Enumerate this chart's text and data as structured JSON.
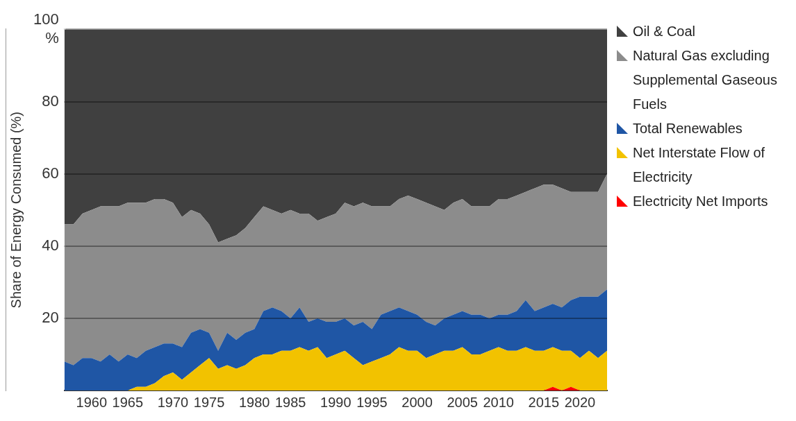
{
  "chart_data": {
    "type": "area",
    "stacked": true,
    "ylabel": "Share of Energy Consumed (%)",
    "categories": [
      null,
      null,
      null,
      "1960",
      null,
      null,
      null,
      "1965",
      null,
      null,
      null,
      null,
      "1970",
      null,
      null,
      null,
      "1975",
      null,
      null,
      null,
      null,
      "1980",
      null,
      null,
      null,
      "1985",
      null,
      null,
      null,
      null,
      "1990",
      null,
      null,
      null,
      "1995",
      null,
      null,
      null,
      null,
      "2000",
      null,
      null,
      null,
      null,
      "2005",
      null,
      null,
      null,
      "2010",
      null,
      null,
      null,
      null,
      "2015",
      null,
      null,
      null,
      "2020",
      null,
      null,
      null
    ],
    "series": [
      {
        "name": "Electricity Net Imports",
        "color": "#ff0000",
        "values": [
          0,
          0,
          0,
          0,
          0,
          0,
          0,
          0,
          0,
          0,
          0,
          0,
          0,
          0,
          0,
          0,
          0,
          0,
          0,
          0,
          0,
          0,
          0,
          0,
          0,
          0,
          0,
          0,
          0,
          0,
          0,
          0,
          0,
          0,
          0,
          0,
          0,
          0,
          0,
          0,
          0,
          0,
          0,
          0,
          0,
          0,
          0,
          0,
          0,
          0,
          0,
          0,
          0,
          0,
          1,
          0,
          1,
          0,
          0,
          0,
          0
        ]
      },
      {
        "name": "Net Interstate Flow of Electricity",
        "color": "#f2c200",
        "values": [
          0,
          0,
          0,
          0,
          0,
          0,
          0,
          0,
          1,
          1,
          2,
          4,
          5,
          3,
          5,
          7,
          9,
          6,
          7,
          6,
          7,
          9,
          10,
          10,
          11,
          11,
          12,
          11,
          12,
          9,
          10,
          11,
          9,
          7,
          8,
          9,
          10,
          12,
          11,
          11,
          9,
          10,
          11,
          11,
          12,
          10,
          10,
          11,
          12,
          11,
          11,
          12,
          11,
          11,
          11,
          11,
          10,
          9,
          11,
          9,
          11
        ]
      },
      {
        "name": "Total Renewables",
        "color": "#1f56a5",
        "values": [
          8,
          7,
          9,
          9,
          8,
          10,
          8,
          10,
          8,
          10,
          10,
          9,
          8,
          9,
          11,
          10,
          7,
          5,
          9,
          8,
          9,
          8,
          12,
          13,
          11,
          9,
          11,
          8,
          8,
          10,
          9,
          9,
          9,
          12,
          9,
          12,
          12,
          11,
          11,
          10,
          10,
          8,
          9,
          10,
          10,
          11,
          11,
          9,
          9,
          10,
          11,
          13,
          11,
          12,
          12,
          12,
          14,
          17,
          15,
          17,
          17
        ]
      },
      {
        "name": "Natural Gas excluding Supplemental Gaseous Fuels",
        "color": "#8c8c8c",
        "values": [
          38,
          39,
          40,
          41,
          43,
          41,
          43,
          42,
          43,
          41,
          41,
          40,
          39,
          36,
          34,
          32,
          30,
          30,
          26,
          29,
          29,
          31,
          29,
          27,
          27,
          30,
          26,
          30,
          27,
          29,
          30,
          32,
          33,
          33,
          34,
          30,
          29,
          30,
          32,
          32,
          33,
          33,
          30,
          31,
          31,
          30,
          30,
          31,
          32,
          32,
          32,
          30,
          34,
          34,
          33,
          33,
          30,
          29,
          29,
          29,
          32
        ]
      },
      {
        "name": "Oil & Coal",
        "color": "#404040",
        "values": [
          54,
          54,
          51,
          50,
          49,
          49,
          49,
          48,
          48,
          48,
          47,
          47,
          48,
          52,
          50,
          51,
          54,
          59,
          58,
          57,
          55,
          52,
          49,
          50,
          51,
          50,
          51,
          51,
          53,
          52,
          51,
          48,
          49,
          48,
          49,
          49,
          49,
          47,
          46,
          47,
          48,
          49,
          50,
          48,
          47,
          49,
          49,
          49,
          47,
          47,
          46,
          45,
          44,
          43,
          43,
          44,
          45,
          45,
          45,
          45,
          40
        ]
      }
    ],
    "ylim": [
      0,
      100
    ],
    "yticks": [
      20,
      40,
      60,
      80,
      {
        "value": 100,
        "label": "100 %"
      }
    ],
    "grid": "y",
    "legend": "right"
  }
}
